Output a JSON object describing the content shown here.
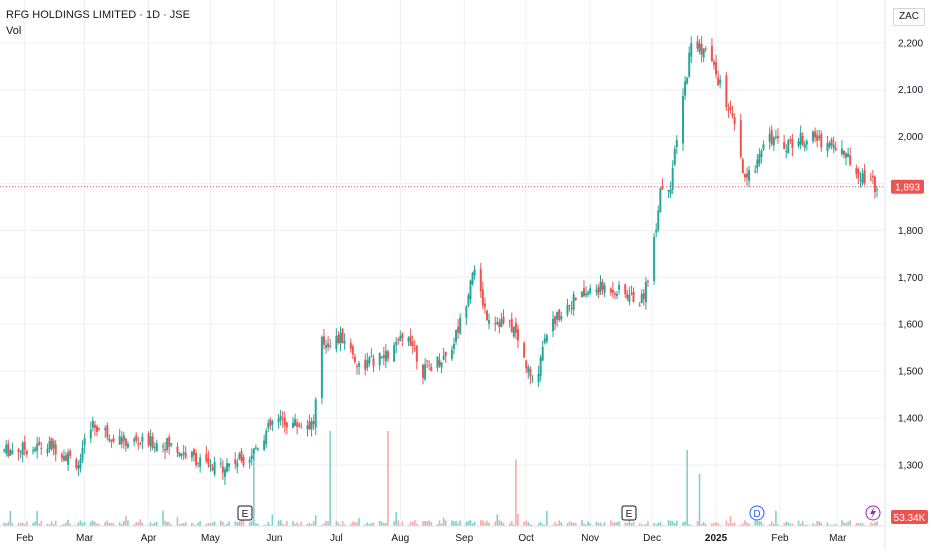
{
  "header": {
    "title": "RFG HOLDINGS LIMITED · 1D · JSE",
    "volume_label": "Vol",
    "currency": "ZAC"
  },
  "colors": {
    "up": "#26a69a",
    "down": "#ef5350",
    "up_vol": "#7fd1c7",
    "down_vol": "#f7a9a7",
    "grid": "#eef0f3",
    "price_line": "#ef5350"
  },
  "markers": {
    "earnings_label": "E",
    "dividend_label": "D",
    "flash_icon": "lightning-icon"
  },
  "last_price_label": "1,893",
  "last_volume_label": "53.34K",
  "chart_data": {
    "type": "candlestick",
    "title": "RFG HOLDINGS LIMITED · 1D · JSE",
    "ylabel": "ZAC",
    "ylim": [
      1255,
      2270
    ],
    "y_ticks": [
      1300,
      1400,
      1500,
      1600,
      1700,
      1800,
      1900,
      2000,
      2100,
      2200
    ],
    "y_tick_labels": [
      "1,300",
      "1,400",
      "1,500",
      "1,600",
      "1,700",
      "1,800",
      "1,900",
      "2,000",
      "2,100",
      "2,200"
    ],
    "x_ticks": [
      "Feb",
      "Mar",
      "Apr",
      "May",
      "Jun",
      "Jul",
      "Aug",
      "Sep",
      "Oct",
      "Nov",
      "Dec",
      "2025",
      "Feb",
      "Mar"
    ],
    "x_tick_dates": [
      "2024-02-01",
      "2024-03-01",
      "2024-04-01",
      "2024-05-01",
      "2024-06-01",
      "2024-07-01",
      "2024-08-01",
      "2024-09-01",
      "2024-10-01",
      "2024-11-01",
      "2024-12-01",
      "2025-01-01",
      "2025-02-01",
      "2025-03-01"
    ],
    "date_range": [
      "2024-01-20",
      "2025-03-20"
    ],
    "last_price": 1893,
    "last_volume": "53.34K",
    "grid": true,
    "price_anchors": [
      [
        "2024-01-20",
        1330
      ],
      [
        "2024-02-15",
        1340
      ],
      [
        "2024-02-28",
        1300
      ],
      [
        "2024-03-03",
        1390
      ],
      [
        "2024-03-20",
        1350
      ],
      [
        "2024-04-10",
        1345
      ],
      [
        "2024-04-25",
        1310
      ],
      [
        "2024-05-02",
        1290
      ],
      [
        "2024-05-20",
        1320
      ],
      [
        "2024-06-01",
        1395
      ],
      [
        "2024-06-15",
        1385
      ],
      [
        "2024-06-20",
        1390
      ],
      [
        "2024-06-24",
        1560
      ],
      [
        "2024-07-05",
        1570
      ],
      [
        "2024-07-12",
        1510
      ],
      [
        "2024-07-25",
        1530
      ],
      [
        "2024-08-05",
        1580
      ],
      [
        "2024-08-12",
        1500
      ],
      [
        "2024-08-25",
        1540
      ],
      [
        "2024-09-01",
        1630
      ],
      [
        "2024-09-05",
        1720
      ],
      [
        "2024-09-12",
        1620
      ],
      [
        "2024-09-25",
        1590
      ],
      [
        "2024-10-05",
        1460
      ],
      [
        "2024-10-10",
        1580
      ],
      [
        "2024-10-20",
        1640
      ],
      [
        "2024-11-01",
        1670
      ],
      [
        "2024-11-10",
        1680
      ],
      [
        "2024-11-20",
        1660
      ],
      [
        "2024-11-26",
        1650
      ],
      [
        "2024-12-01",
        1740
      ],
      [
        "2024-12-05",
        1890
      ],
      [
        "2024-12-10",
        1900
      ],
      [
        "2024-12-15",
        2050
      ],
      [
        "2024-12-20",
        2200
      ],
      [
        "2024-12-28",
        2180
      ],
      [
        "2025-01-03",
        2110
      ],
      [
        "2025-01-10",
        2020
      ],
      [
        "2025-01-15",
        1900
      ],
      [
        "2025-01-20",
        1940
      ],
      [
        "2025-01-25",
        2010
      ],
      [
        "2025-02-01",
        1980
      ],
      [
        "2025-02-15",
        2000
      ],
      [
        "2025-03-01",
        1980
      ],
      [
        "2025-03-10",
        1930
      ],
      [
        "2025-03-20",
        1893
      ]
    ],
    "volume_spikes": [
      [
        "2024-05-22",
        0.8
      ],
      [
        "2024-06-28",
        1.0
      ],
      [
        "2024-07-26",
        1.0
      ],
      [
        "2024-09-01",
        0.45
      ],
      [
        "2024-09-26",
        0.7
      ],
      [
        "2024-12-01",
        0.55
      ],
      [
        "2024-12-18",
        0.8
      ],
      [
        "2024-12-24",
        0.55
      ]
    ]
  }
}
